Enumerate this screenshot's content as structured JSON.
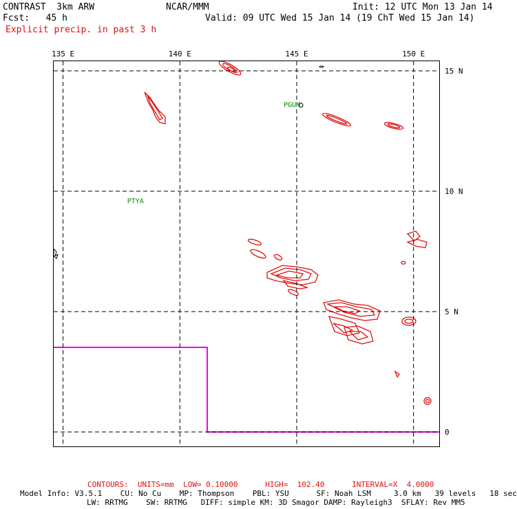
{
  "header": {
    "title": "CONTRAST  3km ARW",
    "forecast": "Fcst:   45 h",
    "field": "Explicit precip. in past 3 h",
    "center": "NCAR/MMM",
    "init": "Init: 12 UTC Mon 13 Jan 14",
    "valid": "Valid: 09 UTC Wed 15 Jan 14 (19 ChT Wed 15 Jan 14)"
  },
  "map": {
    "lon_labels": [
      "135 E",
      "140 E",
      "145 E",
      "150 E"
    ],
    "lat_labels": [
      "15 N",
      "10 N",
      "5 N",
      "0"
    ],
    "lon_range": [
      134.6,
      151.1
    ],
    "lat_range": [
      -0.6,
      15.4
    ],
    "stations": [
      {
        "label": "PGUM",
        "lon": 144.8,
        "lat": 13.5
      },
      {
        "label": "PTYA",
        "lon": 138.1,
        "lat": 9.5
      }
    ],
    "colors": {
      "contour": "#e01010",
      "boundary": "#ee00ee",
      "station": "#008800",
      "grid": "#000000"
    }
  },
  "footer": {
    "contours": "CONTOURS:  UNITS=mm  LOW= 0.10000      HIGH=  102.40      INTERVAL=X  4.0000",
    "model_info_1": "Model Info: V3.5.1    CU: No Cu    MP: Thompson    PBL: YSU      SF: Noah LSM     3.0 km   39 levels   18 sec",
    "model_info_2": "LW: RRTMG    SW: RRTMG   DIFF: simple KM: 3D Smagor DAMP: Rayleigh3  SFLAY: Rev MM5"
  }
}
